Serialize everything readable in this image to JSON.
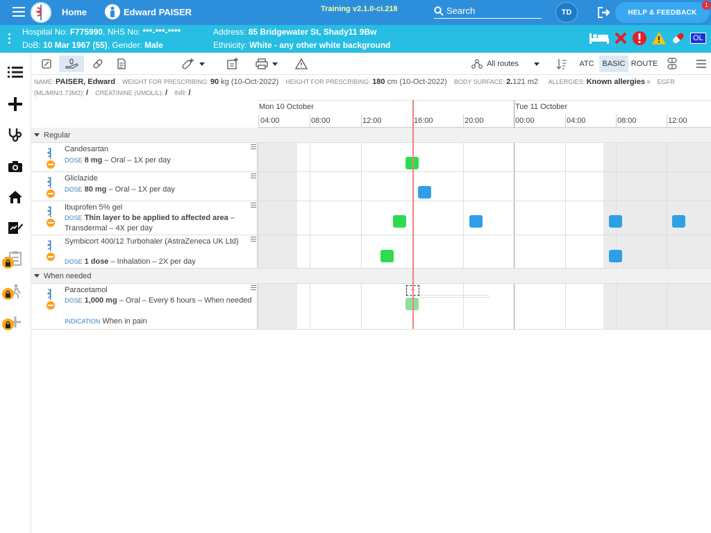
{
  "topbar": {
    "home": "Home",
    "user": "Edward PAISER",
    "version": "Training v2.1.0-ci.218",
    "search": "Search",
    "avatar": "TD",
    "help": "HELP & FEEDBACK",
    "help_badge": "1"
  },
  "banner": {
    "hospital_label": "Hospital No: ",
    "hospital_no": "F775990",
    "nhs_label": ", NHS No: ",
    "nhs_no": "***-***-****",
    "dob_label": "DoB: ",
    "dob": "10 Mar 1967 (55)",
    "gender_label": ", Gender: ",
    "gender": "Male",
    "address_label": "Address: ",
    "address": "85 Bridgewater St, Shady11 9Bw",
    "ethnicity_label": "Ethnicity: ",
    "ethnicity": "White - any other white background",
    "ol_badge": "OL"
  },
  "toolbar": {
    "routes": "All routes",
    "atc": "ATC",
    "basic": "BASIC",
    "route": "ROUTE"
  },
  "info": {
    "name_label": "NAME: ",
    "name": "PAISER, Edward",
    "weight_label": "WEIGHT FOR PRESCRIBING: ",
    "weight": "90",
    "weight_unit": " kg (10-Oct-2022)",
    "height_label": "HEIGHT FOR PRESCRIBING: ",
    "height": "180",
    "height_unit": " cm (10-Oct-2022)",
    "bsa_label": "BODY SURFACE: ",
    "bsa": "2.",
    "bsa_rest": "121 m2",
    "allergies_label": "ALLERGIES: ",
    "allergies": "Known allergies",
    "egfr_label": "EGFR (ML/MIN/1.73M2): ",
    "egfr": "/",
    "creat_label": "CREATININE (UMOL/L): ",
    "creat": "/",
    "inr_label": "INR: ",
    "inr": "/"
  },
  "timeline": {
    "day1": "Mon 10 October",
    "day2": "Tue 11 October",
    "hours": [
      "04:00",
      "08:00",
      "12:00",
      "16:00",
      "20:00",
      "00:00",
      "04:00",
      "08:00",
      "12:00"
    ]
  },
  "sections": {
    "regular": "Regular",
    "when_needed": "When needed"
  },
  "labels": {
    "dose": "DOSE",
    "indication": "INDICATION"
  },
  "medications": [
    {
      "name": "Candesartan",
      "dose": "8 mg",
      "rest": " – Oral – 1X per day"
    },
    {
      "name": "Gliclazide",
      "dose": "80 mg",
      "rest": " – Oral – 1X per day"
    },
    {
      "name": "Ibuprofen 5% gel",
      "dose": "Thin layer to be applied to affected area",
      "rest": " – Transdermal – 4X per day"
    },
    {
      "name": "Symbicort 400/12 Turbohaler (AstraZeneca UK Ltd)",
      "dose": "1 dose",
      "rest": " – Inhalation – 2X per day"
    }
  ],
  "prn": {
    "name": "Paracetamol",
    "dose": "1,000 mg",
    "rest": " – Oral – Every 6 hours – When needed",
    "indication": "When in pain",
    "add": "+"
  },
  "colors": {
    "topbar": "#2d8fdc",
    "banner": "#28bde2",
    "given": "#2edb50",
    "due": "#2e9fe6",
    "now_line": "#f08079"
  }
}
